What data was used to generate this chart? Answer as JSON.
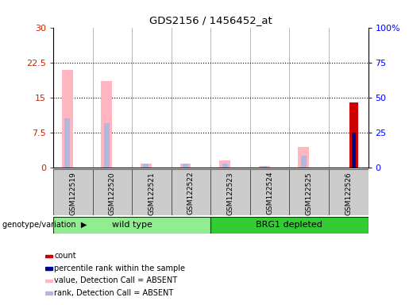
{
  "title": "GDS2156 / 1456452_at",
  "samples": [
    "GSM122519",
    "GSM122520",
    "GSM122521",
    "GSM122522",
    "GSM122523",
    "GSM122524",
    "GSM122525",
    "GSM122526"
  ],
  "value_absent": [
    21.0,
    18.5,
    0.8,
    0.8,
    1.5,
    0.4,
    4.5,
    0.0
  ],
  "rank_absent": [
    10.5,
    9.5,
    0.8,
    0.8,
    0.8,
    0.4,
    2.5,
    0.0
  ],
  "count_present": [
    0.0,
    0.0,
    0.0,
    0.0,
    0.0,
    0.0,
    0.0,
    14.0
  ],
  "rank_present": [
    0.0,
    0.0,
    0.0,
    0.0,
    0.0,
    0.0,
    0.0,
    7.5
  ],
  "left_ylim": [
    0,
    30
  ],
  "right_ylim": [
    0,
    100
  ],
  "left_yticks": [
    0,
    7.5,
    15,
    22.5,
    30
  ],
  "left_yticklabels": [
    "0",
    "7.5",
    "15",
    "22.5",
    "30"
  ],
  "right_yticks": [
    0,
    25,
    50,
    75,
    100
  ],
  "right_yticklabels": [
    "0",
    "25",
    "50",
    "75",
    "100%"
  ],
  "dotted_lines": [
    7.5,
    15,
    22.5
  ],
  "color_value_absent": "#ffb6c1",
  "color_rank_absent": "#b0b8de",
  "color_count_present": "#cc0000",
  "color_rank_present": "#00008b",
  "group_colors_wt": "#90ee90",
  "group_colors_brg": "#33cc33",
  "group_label": "genotype/variation",
  "legend_items": [
    {
      "color": "#cc0000",
      "label": "count"
    },
    {
      "color": "#00008b",
      "label": "percentile rank within the sample"
    },
    {
      "color": "#ffb6c1",
      "label": "value, Detection Call = ABSENT"
    },
    {
      "color": "#b0b8de",
      "label": "rank, Detection Call = ABSENT"
    }
  ],
  "bg_color": "#cccccc",
  "plot_bg": "#ffffff"
}
